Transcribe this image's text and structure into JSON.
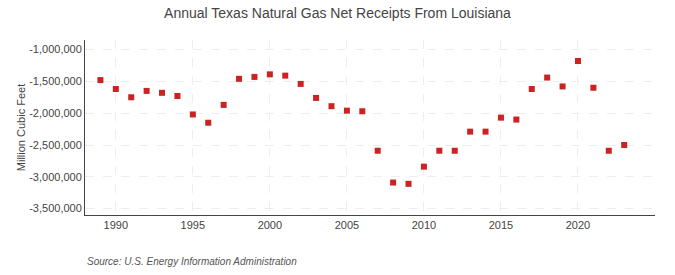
{
  "chart_data": {
    "type": "scatter",
    "title": "Annual Texas Natural Gas Net Receipts From Louisiana",
    "ylabel": "Million Cubic Feet",
    "source": "Source: U.S. Energy Information Administration",
    "x": [
      1989,
      1990,
      1991,
      1992,
      1993,
      1994,
      1995,
      1996,
      1997,
      1998,
      1999,
      2000,
      2001,
      2002,
      2003,
      2004,
      2005,
      2006,
      2007,
      2008,
      2009,
      2010,
      2011,
      2012,
      2013,
      2014,
      2015,
      2016,
      2017,
      2018,
      2019,
      2020,
      2021,
      2022,
      2023
    ],
    "values": [
      -1480000,
      -1620000,
      -1750000,
      -1650000,
      -1680000,
      -1730000,
      -2020000,
      -2150000,
      -1870000,
      -1460000,
      -1430000,
      -1390000,
      -1410000,
      -1540000,
      -1760000,
      -1890000,
      -1960000,
      -1970000,
      -2590000,
      -3090000,
      -3110000,
      -2840000,
      -2590000,
      -2590000,
      -2290000,
      -2290000,
      -2070000,
      -2100000,
      -1620000,
      -1440000,
      -1580000,
      -1180000,
      -1600000,
      -2590000,
      -2500000
    ],
    "color": "#cc2222",
    "marker": "square",
    "xlim": [
      1988.0,
      2025.0
    ],
    "xticks": [
      1990,
      1995,
      2000,
      2005,
      2010,
      2015,
      2020
    ],
    "ylim": [
      -3600000,
      -850000
    ],
    "yticks": [
      {
        "value": -1000000,
        "label": "-1,000,000"
      },
      {
        "value": -1500000,
        "label": "-1,500,000"
      },
      {
        "value": -2000000,
        "label": "-2,000,000"
      },
      {
        "value": -2500000,
        "label": "-2,500,000"
      },
      {
        "value": -3000000,
        "label": "-3,000,000"
      },
      {
        "value": -3500000,
        "label": "-3,500,000"
      }
    ],
    "grid": true
  }
}
